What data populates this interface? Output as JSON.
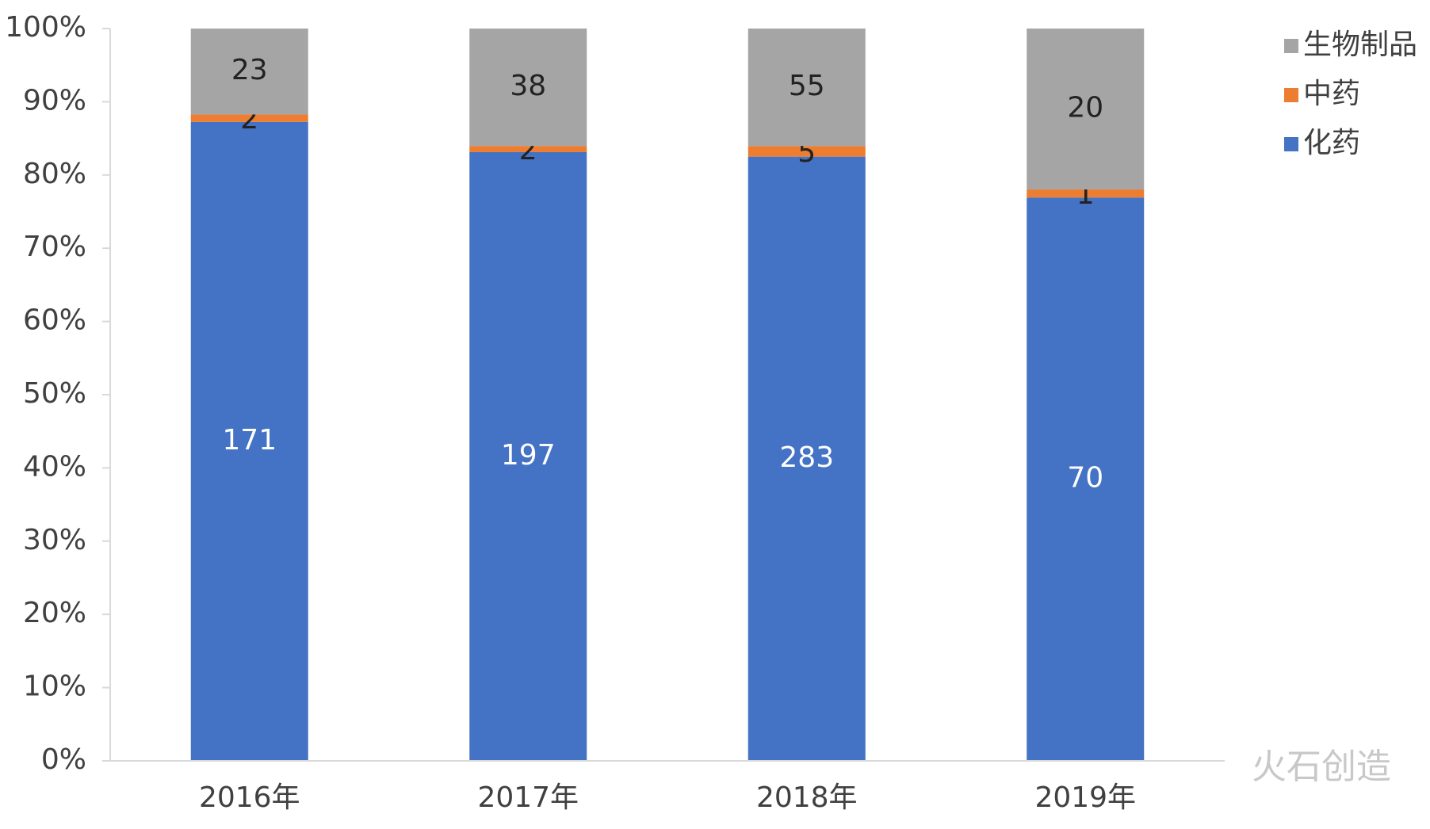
{
  "chart_data": {
    "type": "bar",
    "stack": "percent",
    "categories": [
      "2016年",
      "2017年",
      "2018年",
      "2019年"
    ],
    "series": [
      {
        "name": "化药",
        "color": "#4472c4",
        "values": [
          171,
          197,
          283,
          70
        ]
      },
      {
        "name": "中药",
        "color": "#ed7d31",
        "values": [
          2,
          2,
          5,
          1
        ]
      },
      {
        "name": "生物制品",
        "color": "#a5a5a5",
        "values": [
          23,
          38,
          55,
          20
        ]
      }
    ],
    "ylim": [
      0,
      100
    ],
    "yticks": [
      {
        "value": 0,
        "label": "0%"
      },
      {
        "value": 10,
        "label": "10%"
      },
      {
        "value": 20,
        "label": "20%"
      },
      {
        "value": 30,
        "label": "30%"
      },
      {
        "value": 40,
        "label": "40%"
      },
      {
        "value": 50,
        "label": "50%"
      },
      {
        "value": 60,
        "label": "60%"
      },
      {
        "value": 70,
        "label": "70%"
      },
      {
        "value": 80,
        "label": "80%"
      },
      {
        "value": 90,
        "label": "90%"
      },
      {
        "value": 100,
        "label": "100%"
      }
    ],
    "legend": "right-top",
    "watermark": "火石创造"
  }
}
